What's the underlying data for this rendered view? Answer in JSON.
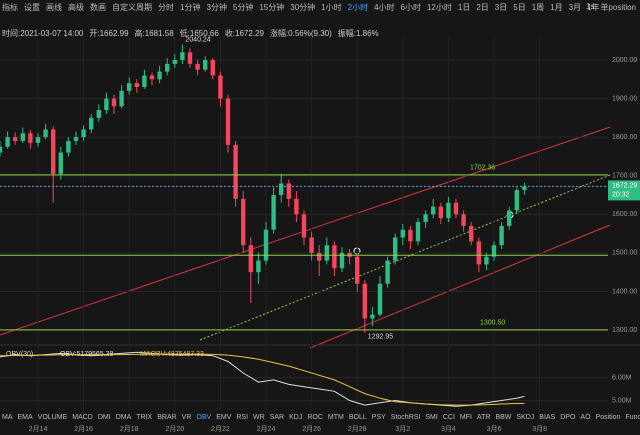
{
  "toolbar": {
    "left": [
      "指标",
      "设置",
      "画线",
      "高级",
      "数画"
    ],
    "periods": [
      "自定义周期",
      "分时",
      "1分钟",
      "3分钟",
      "5分钟",
      "15分钟",
      "30分钟",
      "1小时",
      "2小时",
      "4小时",
      "6小时",
      "12小时",
      "1日",
      "2日",
      "3日",
      "5日",
      "1周",
      "1月",
      "3月",
      "1年"
    ],
    "right": [
      "1s",
      "单position"
    ]
  },
  "info": {
    "time": "时间:2021-03-07 14:00",
    "open": "开:1662.99",
    "high": "高:1681.58",
    "low": "低:1650.66",
    "close": "收:1672.29",
    "change": "涨幅:0.56%(9.30)",
    "amplitude": "振幅:1.86%"
  },
  "chart_data": [
    {
      "type": "candlestick",
      "up_color": "#2ebd85",
      "down_color": "#f6465d",
      "xlim": [
        0,
        80
      ],
      "ylim": [
        1269,
        2057
      ],
      "xticks": [
        {
          "value": 5,
          "label": "2月14"
        },
        {
          "value": 11,
          "label": "2月16"
        },
        {
          "value": 17,
          "label": "2月18"
        },
        {
          "value": 23,
          "label": "2月20"
        },
        {
          "value": 29,
          "label": "2月22"
        },
        {
          "value": 35,
          "label": "2月24"
        },
        {
          "value": 41,
          "label": "2月26"
        },
        {
          "value": 47,
          "label": "2月28"
        },
        {
          "value": 53,
          "label": "3月2"
        },
        {
          "value": 59,
          "label": "3月4"
        },
        {
          "value": 65,
          "label": "3月6"
        },
        {
          "value": 71,
          "label": "3月8"
        }
      ],
      "yticks": [
        {
          "value": 1300,
          "label": "1300.00"
        },
        {
          "value": 1400,
          "label": "1400.00"
        },
        {
          "value": 1500,
          "label": "1500.00"
        },
        {
          "value": 1600,
          "label": "1600.00"
        },
        {
          "value": 1700,
          "label": "1700.00"
        },
        {
          "value": 1800,
          "label": "1800.00"
        },
        {
          "value": 1900,
          "label": "1900.00"
        },
        {
          "value": 2000,
          "label": "2000.00"
        }
      ],
      "ohlc": [
        [
          1760,
          1790,
          1750,
          1775
        ],
        [
          1775,
          1815,
          1770,
          1800
        ],
        [
          1800,
          1812,
          1780,
          1790
        ],
        [
          1790,
          1825,
          1785,
          1810
        ],
        [
          1810,
          1818,
          1770,
          1785
        ],
        [
          1785,
          1810,
          1775,
          1800
        ],
        [
          1800,
          1835,
          1795,
          1820
        ],
        [
          1820,
          1828,
          1630,
          1705
        ],
        [
          1705,
          1775,
          1690,
          1760
        ],
        [
          1760,
          1800,
          1750,
          1790
        ],
        [
          1790,
          1815,
          1780,
          1800
        ],
        [
          1800,
          1830,
          1790,
          1820
        ],
        [
          1820,
          1860,
          1810,
          1850
        ],
        [
          1850,
          1885,
          1840,
          1870
        ],
        [
          1870,
          1915,
          1860,
          1900
        ],
        [
          1900,
          1910,
          1860,
          1880
        ],
        [
          1880,
          1935,
          1875,
          1920
        ],
        [
          1920,
          1955,
          1910,
          1940
        ],
        [
          1940,
          1950,
          1915,
          1930
        ],
        [
          1930,
          1975,
          1925,
          1960
        ],
        [
          1960,
          1968,
          1935,
          1950
        ],
        [
          1950,
          1985,
          1940,
          1970
        ],
        [
          1970,
          2005,
          1960,
          1990
        ],
        [
          1990,
          2015,
          1980,
          2000
        ],
        [
          2000,
          2040.24,
          1990,
          2020
        ],
        [
          2020,
          2030,
          1980,
          1990
        ],
        [
          1990,
          2000,
          1960,
          1975
        ],
        [
          1975,
          2010,
          1970,
          2000
        ],
        [
          2000,
          2005,
          1950,
          1960
        ],
        [
          1960,
          1970,
          1880,
          1900
        ],
        [
          1900,
          1910,
          1760,
          1780
        ],
        [
          1780,
          1790,
          1620,
          1640
        ],
        [
          1640,
          1660,
          1500,
          1520
        ],
        [
          1520,
          1540,
          1370,
          1450
        ],
        [
          1450,
          1500,
          1420,
          1480
        ],
        [
          1480,
          1580,
          1470,
          1560
        ],
        [
          1560,
          1670,
          1550,
          1650
        ],
        [
          1650,
          1705,
          1630,
          1680
        ],
        [
          1680,
          1690,
          1620,
          1640
        ],
        [
          1640,
          1660,
          1580,
          1600
        ],
        [
          1600,
          1610,
          1520,
          1540
        ],
        [
          1540,
          1555,
          1480,
          1500
        ],
        [
          1500,
          1520,
          1440,
          1480
        ],
        [
          1480,
          1540,
          1470,
          1520
        ],
        [
          1520,
          1530,
          1440,
          1460
        ],
        [
          1460,
          1515,
          1450,
          1500
        ],
        [
          1500,
          1510,
          1470,
          1490
        ],
        [
          1490,
          1495,
          1400,
          1420
        ],
        [
          1420,
          1430,
          1292.95,
          1330
        ],
        [
          1330,
          1360,
          1310,
          1340
        ],
        [
          1340,
          1440,
          1335,
          1420
        ],
        [
          1420,
          1490,
          1410,
          1480
        ],
        [
          1480,
          1550,
          1470,
          1540
        ],
        [
          1540,
          1575,
          1520,
          1560
        ],
        [
          1560,
          1570,
          1510,
          1530
        ],
        [
          1530,
          1590,
          1520,
          1580
        ],
        [
          1580,
          1610,
          1565,
          1600
        ],
        [
          1600,
          1640,
          1590,
          1620
        ],
        [
          1620,
          1630,
          1575,
          1590
        ],
        [
          1590,
          1645,
          1580,
          1630
        ],
        [
          1630,
          1640,
          1590,
          1600
        ],
        [
          1600,
          1610,
          1555,
          1570
        ],
        [
          1570,
          1580,
          1520,
          1530
        ],
        [
          1530,
          1540,
          1450,
          1470
        ],
        [
          1470,
          1500,
          1455,
          1490
        ],
        [
          1490,
          1530,
          1480,
          1520
        ],
        [
          1520,
          1580,
          1510,
          1570
        ],
        [
          1570,
          1620,
          1560,
          1610
        ],
        [
          1610,
          1670,
          1600,
          1662.99
        ],
        [
          1662.99,
          1681.58,
          1650.66,
          1672.29
        ]
      ],
      "levels": [
        {
          "value": 1702.36,
          "label": "1702.36"
        },
        {
          "value": 1494
        },
        {
          "value": 1300.5,
          "label": "1300.50"
        }
      ],
      "annotations": [
        {
          "value": 2040.24,
          "label": "2040.24"
        },
        {
          "value": 1292.95,
          "label": "1292.95"
        }
      ],
      "last_price": {
        "value": 1672.29,
        "label": "1672.29",
        "countdown": "20:32"
      }
    },
    {
      "type": "line",
      "title": "OBV(30)",
      "xlim": [
        0,
        80
      ],
      "ylim": [
        4500000,
        7200000
      ],
      "yticks": [
        {
          "value": 6000000,
          "label": "6.00M"
        },
        {
          "value": 5000000,
          "label": "5.00M"
        }
      ],
      "x": [
        0,
        2,
        4,
        6,
        8,
        10,
        12,
        14,
        16,
        18,
        20,
        22,
        24,
        26,
        28,
        30,
        32,
        34,
        36,
        38,
        40,
        42,
        44,
        46,
        48,
        50,
        52,
        54,
        56,
        58,
        60,
        62,
        64,
        66,
        68,
        69
      ],
      "series": [
        {
          "name": "OBV:5179565.38",
          "color": "#e0e0e0",
          "values": [
            6900000,
            7000000,
            6950000,
            7000000,
            7050000,
            7000000,
            6950000,
            7000000,
            7050000,
            7100000,
            7050000,
            7000000,
            6980000,
            7000000,
            6950000,
            6700000,
            6200000,
            5800000,
            5900000,
            5700000,
            5600000,
            5500000,
            5400000,
            5000000,
            4800000,
            4900000,
            5000000,
            4900000,
            4850000,
            4800000,
            4750000,
            4800000,
            4900000,
            5000000,
            5100000,
            5179565.38
          ]
        },
        {
          "name": "MAOBV:4875487.33",
          "color": "#e8c547",
          "values": [
            6950000,
            6960000,
            6970000,
            6980000,
            6990000,
            7000000,
            7000000,
            7000000,
            7000000,
            7010000,
            7020000,
            7020000,
            7020000,
            7020000,
            7010000,
            6980000,
            6900000,
            6800000,
            6650000,
            6500000,
            6300000,
            6100000,
            5900000,
            5600000,
            5300000,
            5100000,
            4950000,
            4900000,
            4850000,
            4820000,
            4800000,
            4800000,
            4820000,
            4850000,
            4870000,
            4875487.33
          ]
        }
      ]
    }
  ],
  "indicator_tabs": [
    "MA",
    "EMA",
    "VOLUME",
    "MACD",
    "DMI",
    "DMA",
    "TRIX",
    "BRAR",
    "VR",
    "OBV",
    "EMV",
    "RSI",
    "WR",
    "SAR",
    "KDJ",
    "ROC",
    "MTM",
    "BOLL",
    "PSY",
    "StochRSI",
    "SMI",
    "CCI",
    "MFI",
    "ATR",
    "BBW",
    "SKDJ",
    "BIAS",
    "DPO",
    "AO",
    "Position",
    "Fundflow",
    "AI-NetVOL",
    "LSUR"
  ]
}
